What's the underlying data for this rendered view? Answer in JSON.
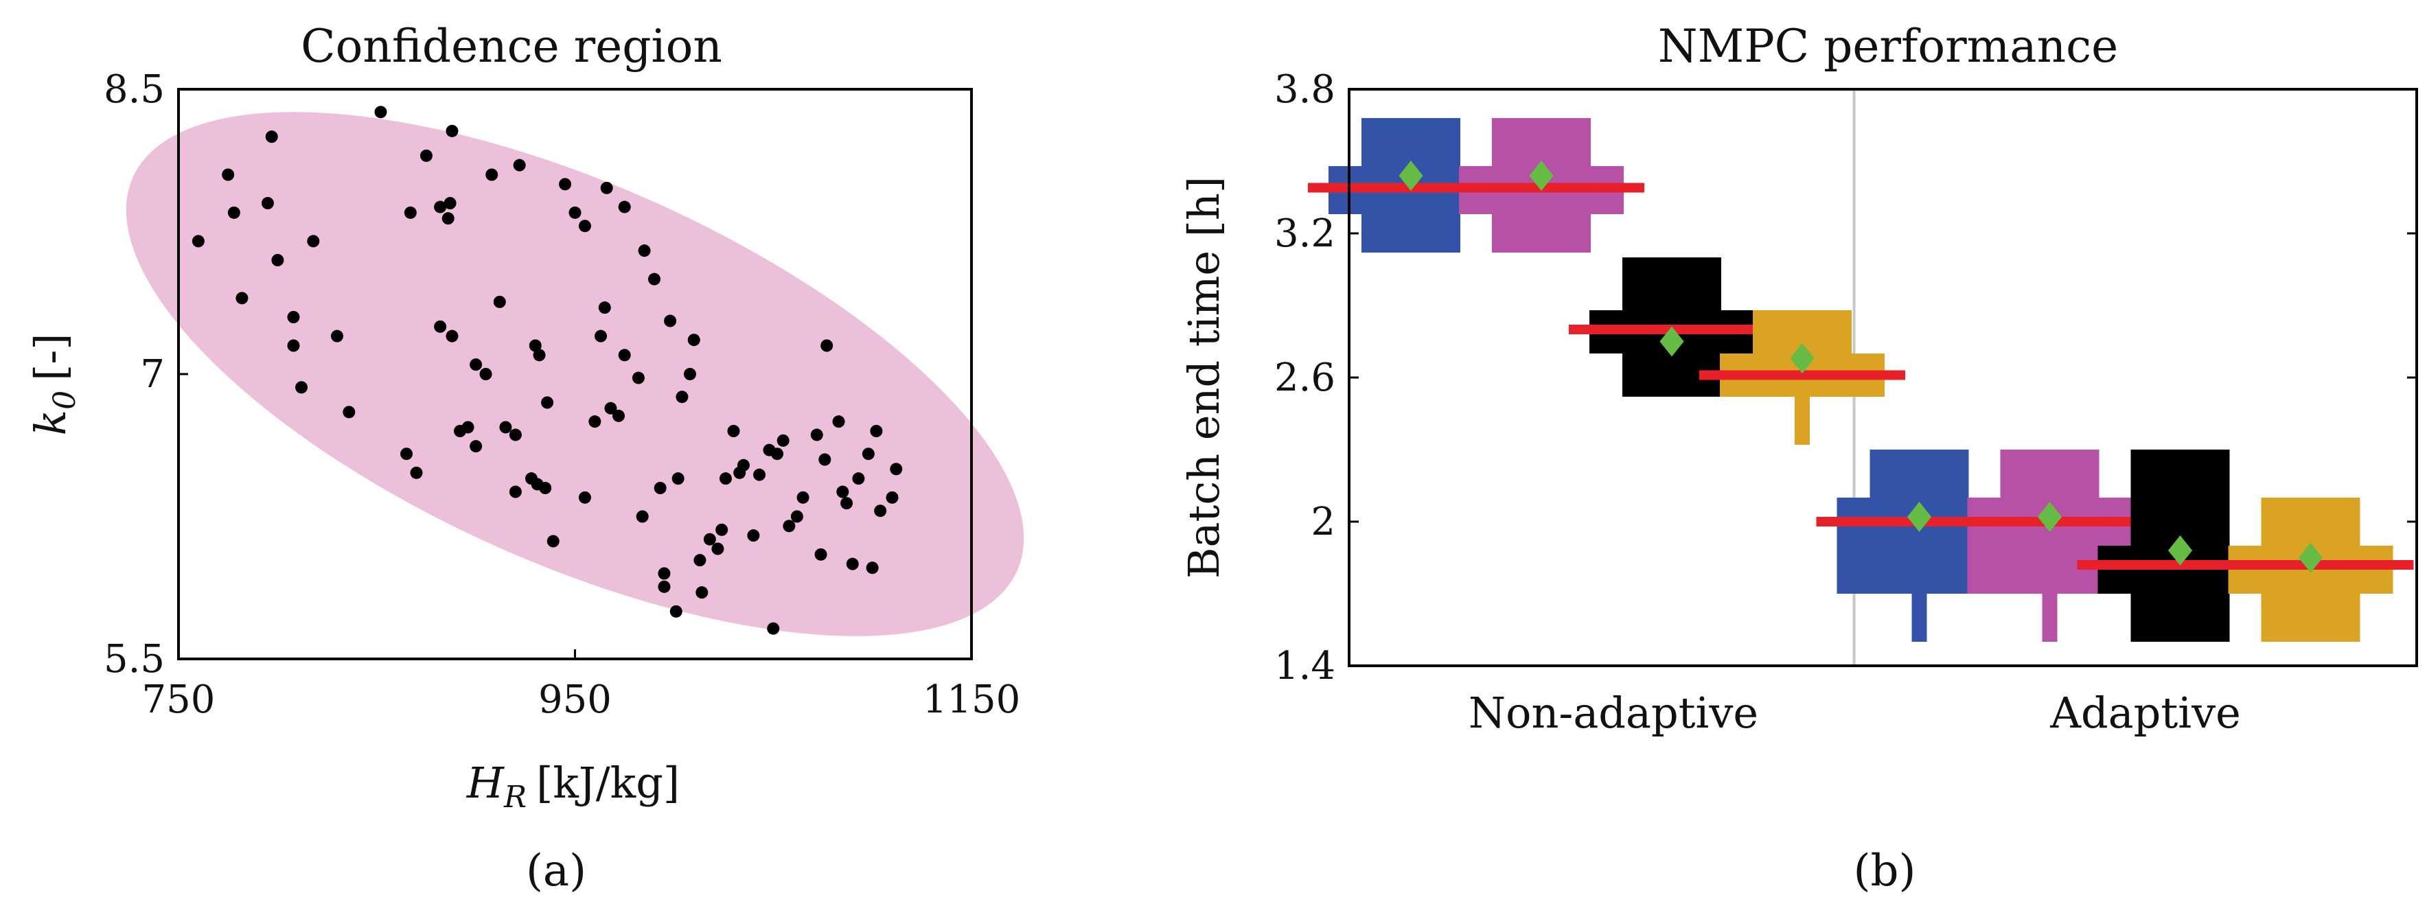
{
  "chart_data": [
    {
      "type": "scatter",
      "title": "Confidence region",
      "caption": "(a)",
      "xlabel": "H_R [kJ/kg]",
      "xlabel_main": "H",
      "xlabel_sub": "R",
      "xlabel_unit": "[kJ/kg]",
      "ylabel": "k_0 [-]",
      "ylabel_main": "k",
      "ylabel_sub": "0",
      "ylabel_unit": "[-]",
      "xlim": [
        750,
        1150
      ],
      "ylim": [
        5.5,
        8.5
      ],
      "xticks": [
        750,
        950,
        1150
      ],
      "yticks": [
        5.5,
        7,
        8.5
      ],
      "xtick_labels": [
        "750",
        "950",
        "1150"
      ],
      "ytick_labels": [
        "5.5",
        "7",
        "8.5"
      ],
      "region": {
        "shape": "ellipse",
        "center": [
          950,
          7.0
        ],
        "x_half_span": 225,
        "y_half_span_at_center": 1.16,
        "tilt": "negative",
        "color": "#ecbfdb"
      },
      "point_color": "#000000",
      "points": [
        [
          760,
          7.7
        ],
        [
          775,
          8.05
        ],
        [
          778,
          7.85
        ],
        [
          782,
          7.4
        ],
        [
          797,
          8.25
        ],
        [
          795,
          7.9
        ],
        [
          800,
          7.6
        ],
        [
          808,
          7.3
        ],
        [
          808,
          7.15
        ],
        [
          812,
          6.93
        ],
        [
          818,
          7.7
        ],
        [
          830,
          7.2
        ],
        [
          836,
          6.8
        ],
        [
          852,
          8.38
        ],
        [
          865,
          6.58
        ],
        [
          870,
          6.48
        ],
        [
          867,
          7.85
        ],
        [
          875,
          8.15
        ],
        [
          882,
          7.25
        ],
        [
          882,
          7.88
        ],
        [
          886,
          7.82
        ],
        [
          887,
          7.9
        ],
        [
          888,
          7.2
        ],
        [
          888,
          8.28
        ],
        [
          892,
          6.7
        ],
        [
          896,
          6.72
        ],
        [
          900,
          6.62
        ],
        [
          900,
          7.05
        ],
        [
          905,
          7.0
        ],
        [
          908,
          8.05
        ],
        [
          912,
          7.38
        ],
        [
          915,
          6.72
        ],
        [
          920,
          6.38
        ],
        [
          920,
          6.68
        ],
        [
          922,
          8.1
        ],
        [
          928,
          6.45
        ],
        [
          930,
          7.15
        ],
        [
          931,
          6.42
        ],
        [
          932,
          7.1
        ],
        [
          935,
          6.4
        ],
        [
          936,
          6.85
        ],
        [
          939,
          6.12
        ],
        [
          945,
          8.0
        ],
        [
          950,
          7.85
        ],
        [
          955,
          6.35
        ],
        [
          955,
          7.78
        ],
        [
          960,
          6.75
        ],
        [
          963,
          7.2
        ],
        [
          965,
          7.35
        ],
        [
          966,
          7.98
        ],
        [
          968,
          6.82
        ],
        [
          972,
          6.78
        ],
        [
          975,
          7.1
        ],
        [
          975,
          7.88
        ],
        [
          982,
          6.98
        ],
        [
          984,
          6.25
        ],
        [
          985,
          7.65
        ],
        [
          990,
          7.5
        ],
        [
          993,
          6.4
        ],
        [
          995,
          5.88
        ],
        [
          995,
          5.95
        ],
        [
          998,
          7.28
        ],
        [
          1001,
          5.75
        ],
        [
          1002,
          6.45
        ],
        [
          1004,
          6.88
        ],
        [
          1008,
          7.0
        ],
        [
          1010,
          7.18
        ],
        [
          1013,
          6.02
        ],
        [
          1014,
          5.85
        ],
        [
          1018,
          6.13
        ],
        [
          1022,
          6.08
        ],
        [
          1024,
          6.18
        ],
        [
          1026,
          6.45
        ],
        [
          1030,
          6.7
        ],
        [
          1033,
          6.48
        ],
        [
          1035,
          6.52
        ],
        [
          1040,
          6.15
        ],
        [
          1043,
          6.47
        ],
        [
          1048,
          6.6
        ],
        [
          1050,
          5.66
        ],
        [
          1052,
          6.58
        ],
        [
          1055,
          6.65
        ],
        [
          1058,
          6.2
        ],
        [
          1062,
          6.25
        ],
        [
          1065,
          6.35
        ],
        [
          1072,
          6.68
        ],
        [
          1074,
          6.05
        ],
        [
          1076,
          6.55
        ],
        [
          1077,
          7.15
        ],
        [
          1083,
          6.75
        ],
        [
          1085,
          6.38
        ],
        [
          1087,
          6.32
        ],
        [
          1090,
          6.0
        ],
        [
          1093,
          6.45
        ],
        [
          1098,
          6.58
        ],
        [
          1100,
          5.98
        ],
        [
          1102,
          6.7
        ],
        [
          1104,
          6.28
        ],
        [
          1110,
          6.35
        ],
        [
          1112,
          6.5
        ]
      ]
    },
    {
      "type": "boxplot",
      "title": "NMPC performance",
      "caption": "(b)",
      "ylabel": "Batch end time [h]",
      "ylim": [
        1.4,
        3.8
      ],
      "yticks": [
        1.4,
        2,
        2.6,
        3.2,
        3.8
      ],
      "ytick_labels": [
        "1.4",
        "2",
        "2.6",
        "3.2",
        "3.8"
      ],
      "groups": [
        "Non-adaptive",
        "Adaptive"
      ],
      "median_color": "#e8202a",
      "mean_color": "#66bb44",
      "series": [
        {
          "group": "Non-adaptive",
          "color": "#3452a8",
          "whisker_low": 3.12,
          "q_low": 3.28,
          "q_high": 3.48,
          "outer_low": 3.12,
          "outer_high": 3.68,
          "median": 3.39,
          "mean": 3.44
        },
        {
          "group": "Non-adaptive",
          "color": "#b751a5",
          "whisker_low": 3.12,
          "q_low": 3.28,
          "q_high": 3.48,
          "outer_low": 3.12,
          "outer_high": 3.68,
          "median": 3.39,
          "mean": 3.44
        },
        {
          "group": "Non-adaptive",
          "color": "#000000",
          "whisker_low": 2.52,
          "q_low": 2.7,
          "q_high": 2.88,
          "outer_low": 2.52,
          "outer_high": 3.1,
          "median": 2.8,
          "mean": 2.75
        },
        {
          "group": "Non-adaptive",
          "color": "#dba323",
          "whisker_low": 2.32,
          "q_low": 2.52,
          "q_high": 2.7,
          "outer_low": 2.52,
          "outer_high": 2.88,
          "median": 2.61,
          "mean": 2.68
        },
        {
          "group": "Adaptive",
          "color": "#3452a8",
          "whisker_low": 1.5,
          "q_low": 1.7,
          "q_high": 2.1,
          "outer_low": 1.7,
          "outer_high": 2.3,
          "median": 2.0,
          "mean": 2.02
        },
        {
          "group": "Adaptive",
          "color": "#b751a5",
          "whisker_low": 1.5,
          "q_low": 1.7,
          "q_high": 2.1,
          "outer_low": 1.7,
          "outer_high": 2.3,
          "median": 2.0,
          "mean": 2.02
        },
        {
          "group": "Adaptive",
          "color": "#000000",
          "whisker_low": 1.5,
          "q_low": 1.7,
          "q_high": 1.9,
          "outer_low": 1.5,
          "outer_high": 2.3,
          "median": 1.82,
          "mean": 1.88
        },
        {
          "group": "Adaptive",
          "color": "#dba323",
          "whisker_low": 1.5,
          "q_low": 1.7,
          "q_high": 1.9,
          "outer_low": 1.5,
          "outer_high": 2.1,
          "median": 1.82,
          "mean": 1.85
        }
      ]
    }
  ]
}
